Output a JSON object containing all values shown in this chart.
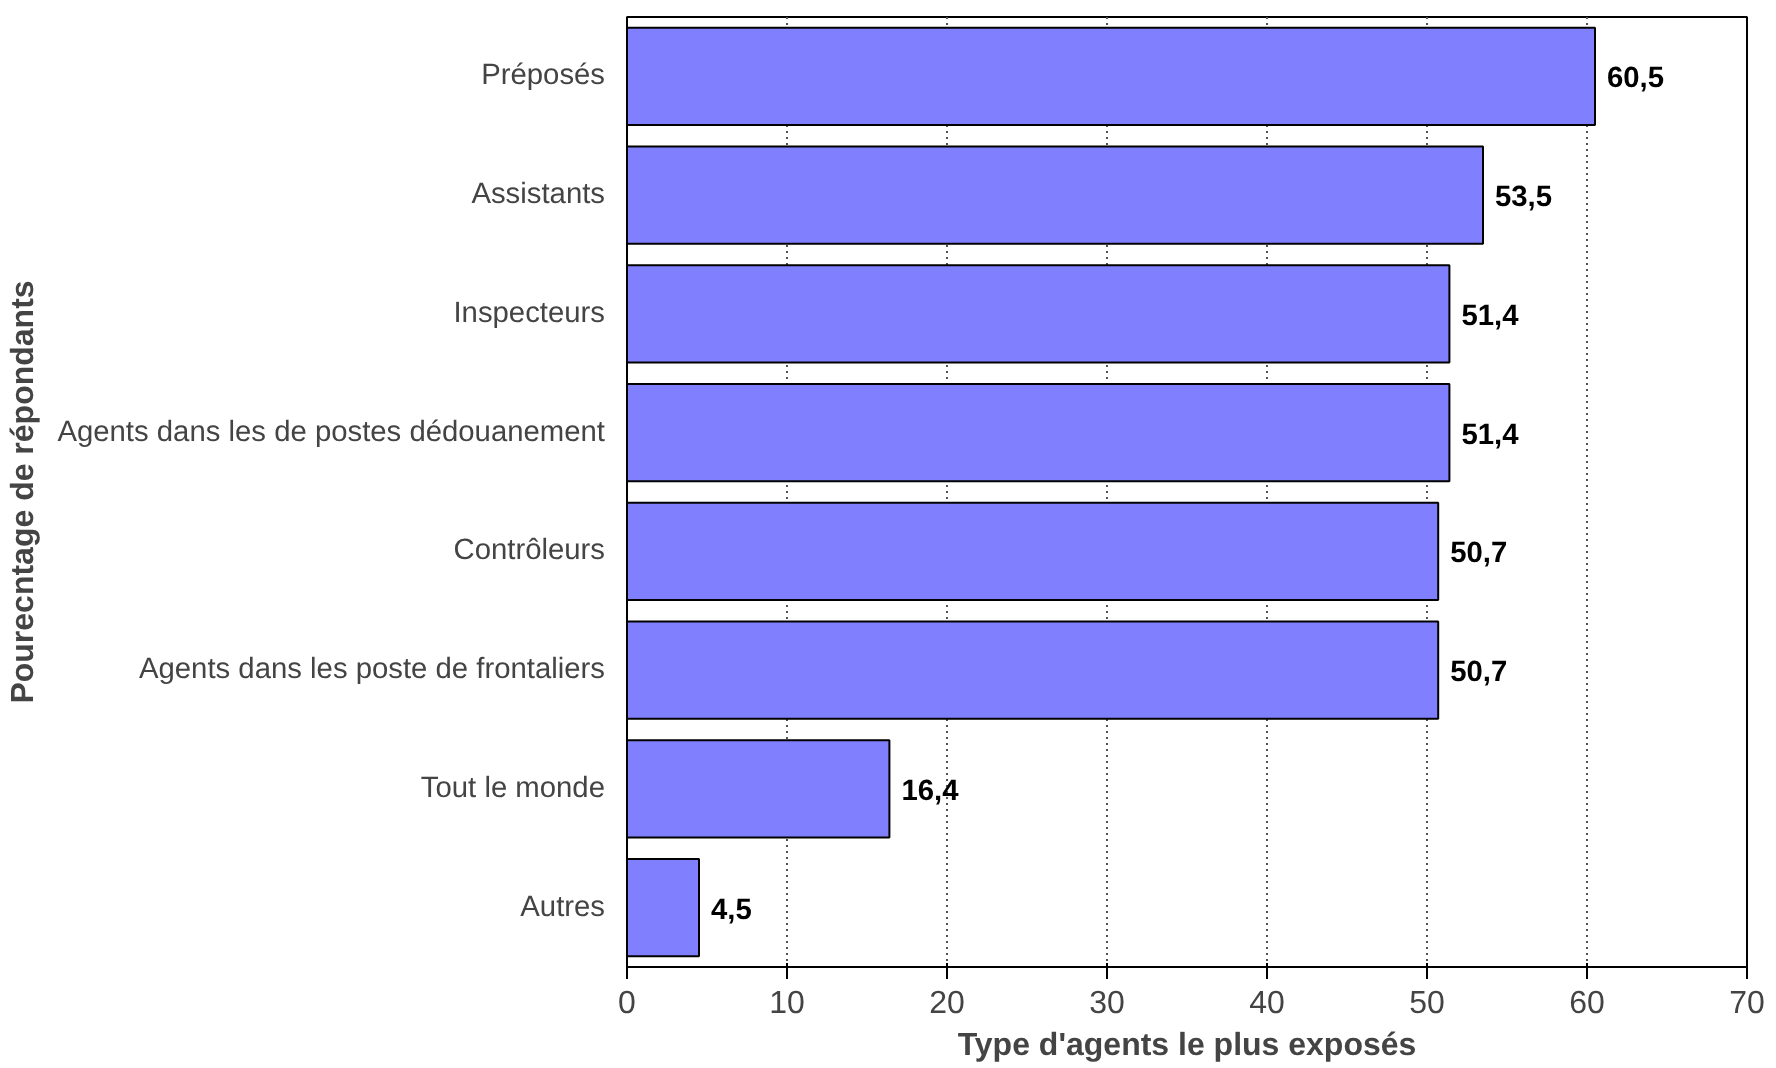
{
  "chart_data": {
    "type": "bar",
    "orientation": "horizontal",
    "xlabel": "Type d'agents le plus exposés",
    "ylabel": "Pourecntage de répondants",
    "categories": [
      "Préposés",
      "Assistants",
      "Inspecteurs",
      "Agents dans les de postes dédouanement",
      "Contrôleurs",
      "Agents dans les poste de frontaliers",
      "Tout le monde",
      "Autres"
    ],
    "values": [
      60.5,
      53.5,
      51.4,
      51.4,
      50.7,
      50.7,
      16.4,
      4.5
    ],
    "value_labels": [
      "60,5",
      "53,5",
      "51,4",
      "51,4",
      "50,7",
      "50,7",
      "16,4",
      "4,5"
    ],
    "color": "#8080ff",
    "xlim": [
      0,
      70
    ],
    "xticks": [
      0,
      10,
      20,
      30,
      40,
      50,
      60,
      70
    ],
    "grid": "x"
  }
}
